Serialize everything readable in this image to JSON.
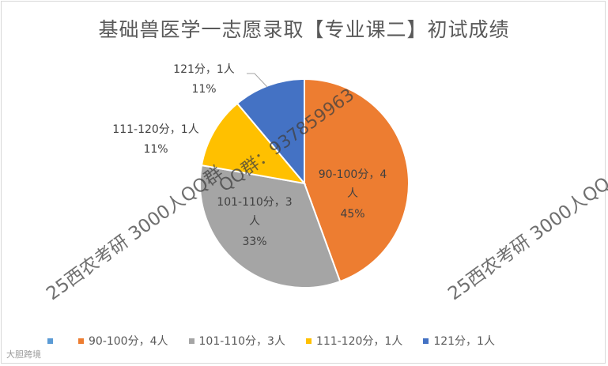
{
  "title": "基础兽医学一志愿录取【专业课二】初试成绩",
  "chart_data": {
    "type": "pie",
    "title": "基础兽医学一志愿录取【专业课二】初试成绩",
    "slices": [
      {
        "label": "90-100分，4人",
        "value": 4,
        "percent": "45%",
        "color": "#ed7d31"
      },
      {
        "label": "101-110分，3人",
        "value": 3,
        "percent": "33%",
        "color": "#a5a5a5"
      },
      {
        "label": "111-120分，1人",
        "value": 1,
        "percent": "11%",
        "color": "#ffc000"
      },
      {
        "label": "121分，1人",
        "value": 1,
        "percent": "11%",
        "color": "#4472c4"
      }
    ],
    "legend_placement": "bottom",
    "empty_legend_color": "#5b9bd5"
  },
  "labels": {
    "s0_line1": "90-100分，4",
    "s0_line2": "人",
    "s0_pct": "45%",
    "s1_line1": "101-110分，3",
    "s1_line2": "人",
    "s1_pct": "33%",
    "s2_line1": "111-120分，1人",
    "s2_pct": "11%",
    "s3_line1": "121分，1人",
    "s3_pct": "11%"
  },
  "watermarks": {
    "left": "25西农考研 3000人QQ群",
    "right": "25西农考研 3000人QQ",
    "center": "QQ群：937859963"
  },
  "brand": "大胆跨境"
}
